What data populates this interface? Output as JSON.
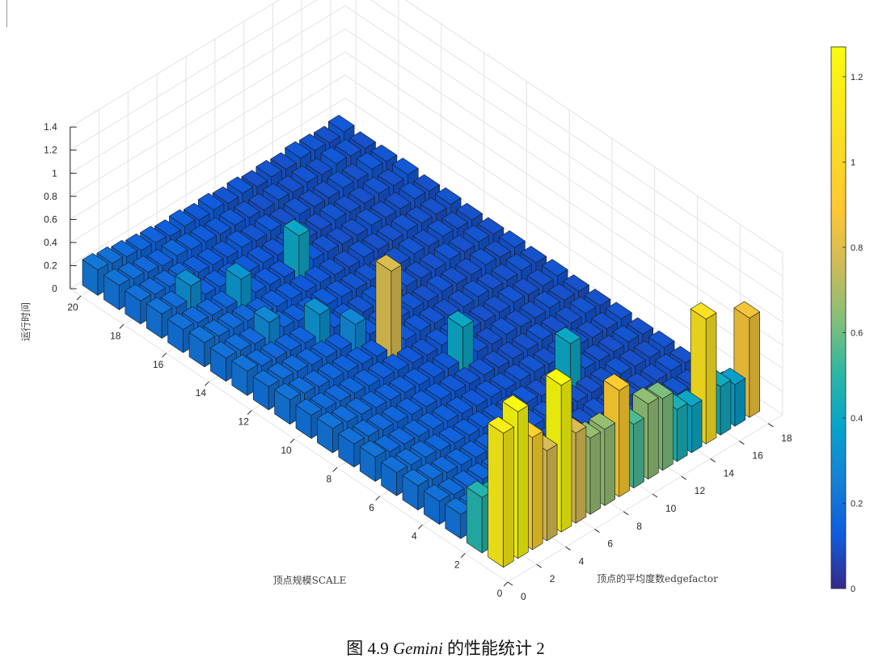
{
  "chart_data": {
    "type": "bar3d",
    "title": "",
    "xlabel": "顶点规模SCALE",
    "ylabel": "顶点的平均度数edgefactor",
    "zlabel": "运行时间",
    "scale_ticks": [
      "0",
      "2",
      "4",
      "6",
      "8",
      "10",
      "12",
      "14",
      "16",
      "18",
      "20"
    ],
    "edgefactor_ticks": [
      "0",
      "2",
      "4",
      "6",
      "8",
      "10",
      "12",
      "14",
      "16",
      "18"
    ],
    "z_ticks": [
      "0",
      "0.2",
      "0.4",
      "0.6",
      "0.8",
      "1",
      "1.2",
      "1.4"
    ],
    "zlim": [
      0,
      1.4
    ],
    "grid": true,
    "colormap": "parula",
    "colorbar": {
      "ticks": [
        "0",
        "0.2",
        "0.4",
        "0.6",
        "0.8",
        "1",
        "1.2"
      ],
      "range": [
        0,
        1.27
      ],
      "placement": "right"
    },
    "scale_values": [
      20,
      19,
      18,
      17,
      16,
      15,
      14,
      13,
      12,
      11,
      10,
      9,
      8,
      7,
      6,
      5,
      4,
      3,
      2,
      1
    ],
    "edgefactor_values": [
      1,
      2,
      3,
      4,
      5,
      6,
      7,
      8,
      9,
      10,
      11,
      12,
      13,
      14,
      15,
      16,
      17,
      18
    ],
    "series_description_note": "",
    "values": [
      [
        0.22,
        0.2,
        0.18,
        0.16,
        0.15,
        0.13,
        0.14,
        0.12,
        0.13,
        0.11,
        0.12,
        0.1,
        0.11,
        0.1,
        0.12,
        0.11,
        0.1,
        0.12
      ],
      [
        0.21,
        0.19,
        0.17,
        0.15,
        0.16,
        0.14,
        0.13,
        0.12,
        0.12,
        0.11,
        0.1,
        0.11,
        0.1,
        0.11,
        0.1,
        0.12,
        0.11,
        0.1
      ],
      [
        0.2,
        0.18,
        0.17,
        0.16,
        0.14,
        0.13,
        0.12,
        0.13,
        0.11,
        0.12,
        0.1,
        0.11,
        0.1,
        0.1,
        0.11,
        0.1,
        0.12,
        0.11
      ],
      [
        0.21,
        0.19,
        0.3,
        0.15,
        0.14,
        0.13,
        0.12,
        0.12,
        0.11,
        0.11,
        0.1,
        0.1,
        0.11,
        0.1,
        0.1,
        0.11,
        0.1,
        0.12
      ],
      [
        0.2,
        0.18,
        0.17,
        0.16,
        0.33,
        0.14,
        0.13,
        0.12,
        0.4,
        0.12,
        0.11,
        0.1,
        0.1,
        0.11,
        0.1,
        0.1,
        0.11,
        0.1
      ],
      [
        0.21,
        0.19,
        0.18,
        0.17,
        0.15,
        0.14,
        0.13,
        0.12,
        0.12,
        0.11,
        0.1,
        0.11,
        0.1,
        0.1,
        0.11,
        0.1,
        0.1,
        0.11
      ],
      [
        0.2,
        0.19,
        0.17,
        0.28,
        0.16,
        0.14,
        0.13,
        0.13,
        0.12,
        0.11,
        0.11,
        0.1,
        0.1,
        0.11,
        0.1,
        0.11,
        0.1,
        0.1
      ],
      [
        0.21,
        0.18,
        0.17,
        0.16,
        0.15,
        0.32,
        0.13,
        0.12,
        0.11,
        0.12,
        0.1,
        0.11,
        0.1,
        0.1,
        0.11,
        0.1,
        0.11,
        0.1
      ],
      [
        0.2,
        0.19,
        0.18,
        0.16,
        0.15,
        0.14,
        0.28,
        0.12,
        0.12,
        0.11,
        0.11,
        0.1,
        0.11,
        0.1,
        0.1,
        0.11,
        0.1,
        0.11
      ],
      [
        0.21,
        0.19,
        0.17,
        0.16,
        0.15,
        0.14,
        0.13,
        0.79,
        0.12,
        0.12,
        0.11,
        0.1,
        0.1,
        0.11,
        0.1,
        0.1,
        0.11,
        0.1
      ],
      [
        0.2,
        0.18,
        0.17,
        0.16,
        0.15,
        0.14,
        0.13,
        0.12,
        0.11,
        0.12,
        0.11,
        0.11,
        0.1,
        0.1,
        0.11,
        0.1,
        0.1,
        0.11
      ],
      [
        0.21,
        0.19,
        0.18,
        0.16,
        0.15,
        0.14,
        0.13,
        0.12,
        0.12,
        0.4,
        0.11,
        0.1,
        0.11,
        0.1,
        0.1,
        0.11,
        0.1,
        0.1
      ],
      [
        0.2,
        0.19,
        0.17,
        0.16,
        0.15,
        0.14,
        0.13,
        0.12,
        0.11,
        0.11,
        0.1,
        0.1,
        0.1,
        0.11,
        0.1,
        0.1,
        0.11,
        0.1
      ],
      [
        0.21,
        0.18,
        0.17,
        0.16,
        0.15,
        0.14,
        0.13,
        0.12,
        0.12,
        0.11,
        0.11,
        0.11,
        0.1,
        0.1,
        0.11,
        0.1,
        0.1,
        0.11
      ],
      [
        0.2,
        0.19,
        0.18,
        0.16,
        0.15,
        0.14,
        0.13,
        0.12,
        0.11,
        0.12,
        0.1,
        0.1,
        0.4,
        0.11,
        0.1,
        0.1,
        0.11,
        0.1
      ],
      [
        0.21,
        0.19,
        0.17,
        0.16,
        0.15,
        0.14,
        0.13,
        0.12,
        0.12,
        0.11,
        0.11,
        0.1,
        0.1,
        0.1,
        0.11,
        0.1,
        0.1,
        0.11
      ],
      [
        0.2,
        0.18,
        0.17,
        0.16,
        0.15,
        0.14,
        0.13,
        0.12,
        0.11,
        0.12,
        0.1,
        0.11,
        0.1,
        0.11,
        0.1,
        0.1,
        0.11,
        0.1
      ],
      [
        0.21,
        0.19,
        0.18,
        0.16,
        0.15,
        0.14,
        0.13,
        0.12,
        0.12,
        0.11,
        0.11,
        0.1,
        0.11,
        0.1,
        0.1,
        0.11,
        0.1,
        0.1
      ],
      [
        0.48,
        0.42,
        0.38,
        0.36,
        0.3,
        0.27,
        0.25,
        0.23,
        0.22,
        0.21,
        0.2,
        0.19,
        0.18,
        0.17,
        0.16,
        0.15,
        0.14,
        0.13
      ],
      [
        1.16,
        1.27,
        0.97,
        0.78,
        1.27,
        0.78,
        0.66,
        0.66,
        0.92,
        0.55,
        0.65,
        0.62,
        0.45,
        0.4,
        1.08,
        0.42,
        0.36,
        0.86
      ]
    ]
  },
  "caption": {
    "prefix": "图  4.9 ",
    "name": "Gemini",
    "suffix": " 的性能统计 2"
  }
}
